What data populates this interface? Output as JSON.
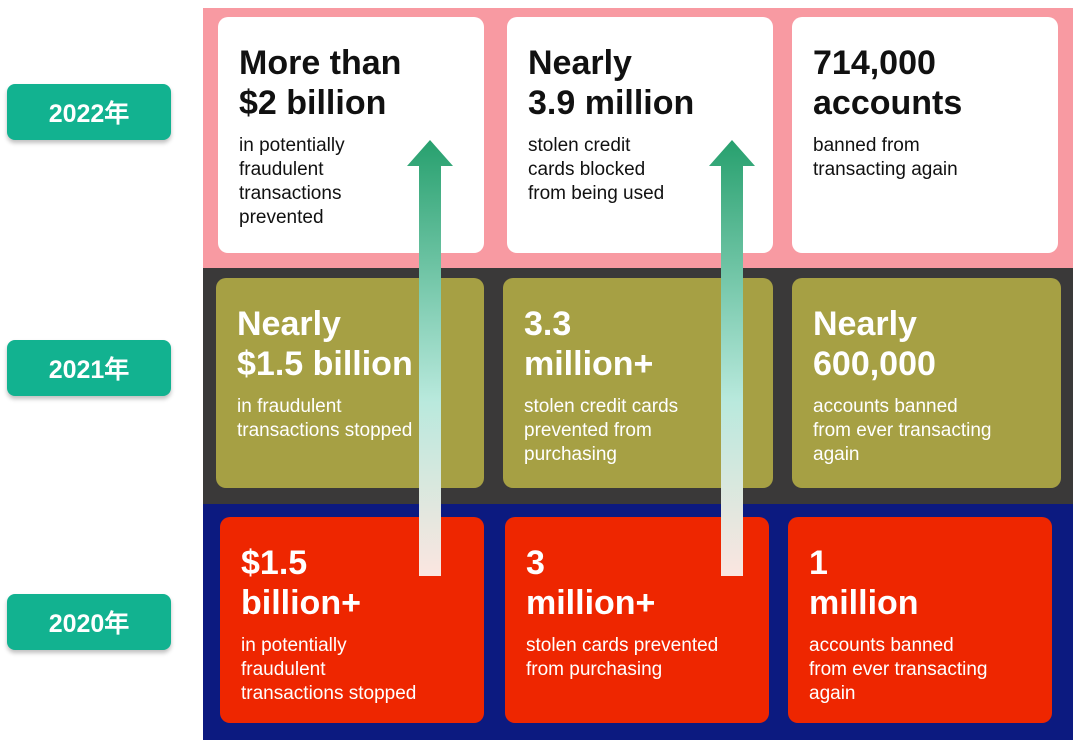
{
  "colors": {
    "label_bg": "#12b290",
    "band_2022": "#f89aa2",
    "band_2021": "#3a3939",
    "band_2020": "#0c1a80",
    "card_2022": "#ffffff",
    "card_2021": "#a6a044",
    "card_2020": "#ee2600",
    "arrow_top": "#27a06e",
    "arrow_bottom": "#fbe6e0"
  },
  "years": [
    {
      "label": "2022年"
    },
    {
      "label": "2021年"
    },
    {
      "label": "2020年"
    }
  ],
  "rows": {
    "y2022": [
      {
        "headline": "More than\n$2 billion",
        "description": "in potentially\nfraudulent\ntransactions\nprevented"
      },
      {
        "headline": "Nearly\n3.9 million",
        "description": "stolen credit\ncards blocked\nfrom being used"
      },
      {
        "headline": "714,000\naccounts",
        "description": "banned from\ntransacting again"
      }
    ],
    "y2021": [
      {
        "headline": "Nearly\n$1.5 billion",
        "description": "in fraudulent\ntransactions stopped"
      },
      {
        "headline": "3.3\nmillion+",
        "description": "stolen credit cards\nprevented from\npurchasing"
      },
      {
        "headline": "Nearly\n600,000",
        "description": "accounts banned\nfrom ever transacting\nagain"
      }
    ],
    "y2020": [
      {
        "headline": "$1.5\nbillion+",
        "description": "in potentially\nfraudulent\ntransactions stopped"
      },
      {
        "headline": "3\nmillion+",
        "description": "stolen cards prevented\nfrom purchasing"
      },
      {
        "headline": "1\nmillion",
        "description": "accounts banned\nfrom ever transacting\nagain"
      }
    ]
  }
}
